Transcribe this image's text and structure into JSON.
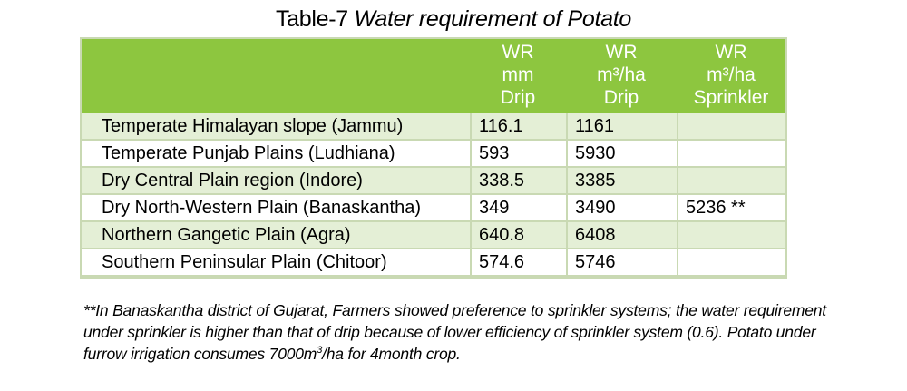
{
  "caption": {
    "prefix": "Table-7 ",
    "title": "Water requirement of Potato"
  },
  "table": {
    "headers": [
      {
        "lines": [
          "",
          "",
          ""
        ]
      },
      {
        "lines": [
          "WR",
          "mm",
          "Drip"
        ]
      },
      {
        "lines": [
          "WR",
          "m³/ha",
          "Drip"
        ]
      },
      {
        "lines": [
          "WR",
          "m³/ha",
          "Sprinkler"
        ]
      }
    ],
    "rows": [
      {
        "region": "Temperate Himalayan slope (Jammu)",
        "wr_mm_drip": "116.1",
        "wr_m3ha_drip": "1161",
        "wr_m3ha_sprinkler": ""
      },
      {
        "region": "Temperate Punjab Plains (Ludhiana)",
        "wr_mm_drip": "593",
        "wr_m3ha_drip": "5930",
        "wr_m3ha_sprinkler": ""
      },
      {
        "region": "Dry Central Plain region (Indore)",
        "wr_mm_drip": "338.5",
        "wr_m3ha_drip": "3385",
        "wr_m3ha_sprinkler": ""
      },
      {
        "region": "Dry North-Western Plain (Banaskantha)",
        "wr_mm_drip": "349",
        "wr_m3ha_drip": "3490",
        "wr_m3ha_sprinkler": "5236 **"
      },
      {
        "region": "Northern Gangetic Plain (Agra)",
        "wr_mm_drip": "640.8",
        "wr_m3ha_drip": "6408",
        "wr_m3ha_sprinkler": ""
      },
      {
        "region": "Southern Peninsular Plain (Chitoor)",
        "wr_mm_drip": "574.6",
        "wr_m3ha_drip": "5746",
        "wr_m3ha_sprinkler": ""
      }
    ]
  },
  "footnote": {
    "part1": "**In Banaskantha district of Gujarat, Farmers showed preference to sprinkler systems; the water requirement under sprinkler is higher than that of drip because of lower efficiency of sprinkler system (0.6). Potato under furrow irrigation consumes 7000m",
    "sup": "3",
    "part2": "/ha for 4month crop."
  },
  "colors": {
    "header_green": "#8dc63f",
    "row_shade": "#e4efd6",
    "border": "#c9d9b3"
  }
}
